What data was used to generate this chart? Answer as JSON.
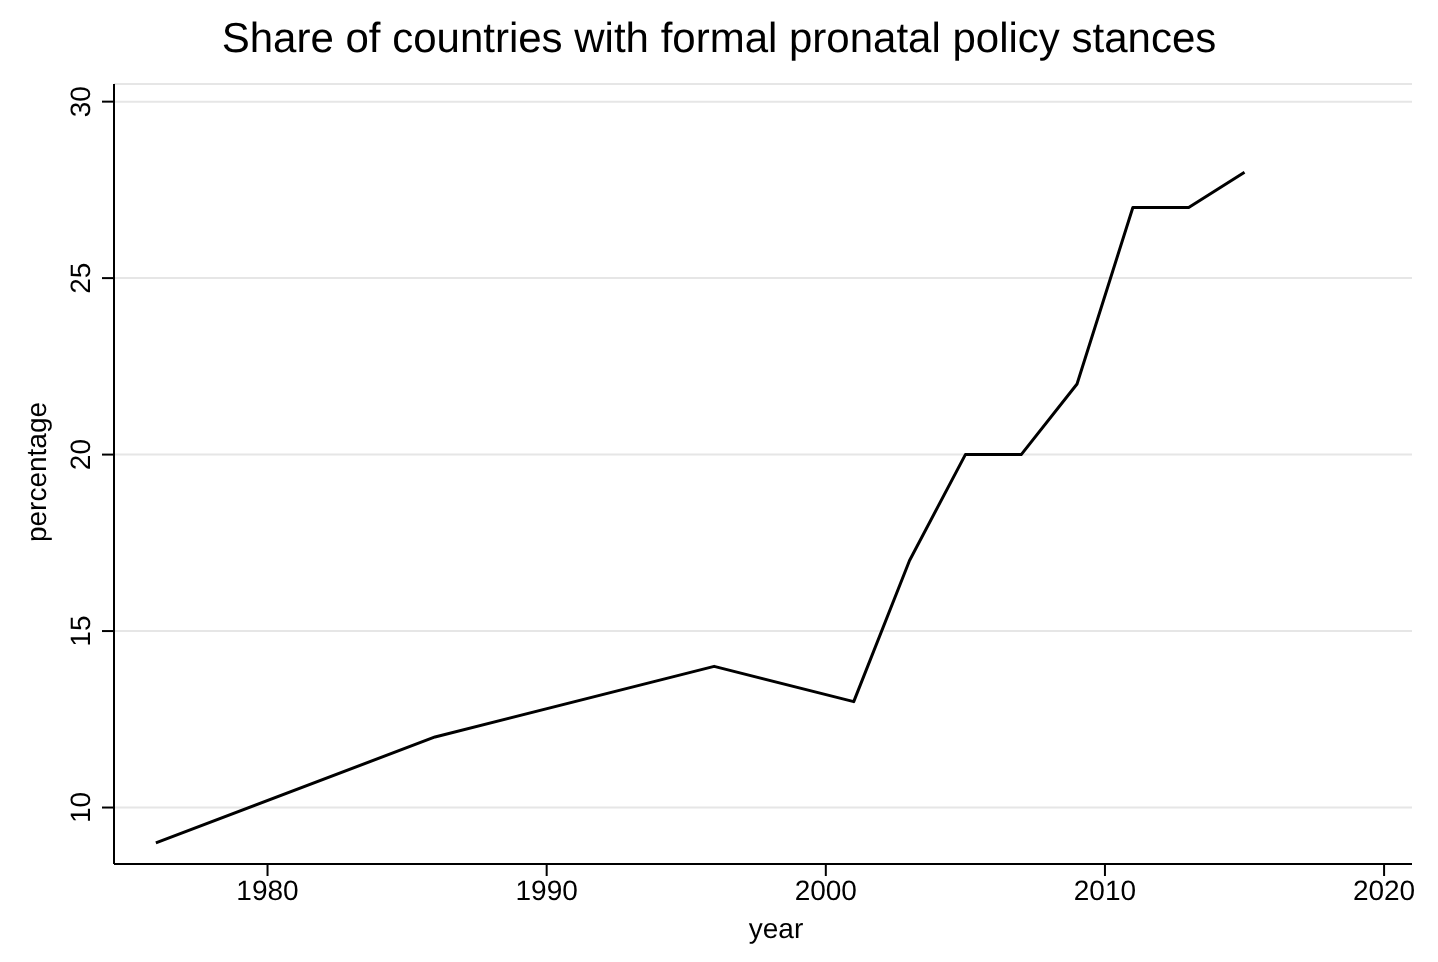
{
  "chart_data": {
    "type": "line",
    "title": "Share of countries with formal pronatal policy stances",
    "xlabel": "year",
    "ylabel": "percentage",
    "x": [
      1976,
      1986,
      1996,
      2001,
      2003,
      2005,
      2007,
      2009,
      2011,
      2013,
      2015
    ],
    "series": [
      {
        "color": "#000000",
        "values": [
          9,
          12,
          14,
          13,
          17,
          20,
          20,
          22,
          27,
          27,
          28
        ]
      }
    ],
    "xlim": [
      1974.5,
      2021
    ],
    "xticks": [
      1980,
      1990,
      2000,
      2010,
      2020
    ],
    "ylim": [
      8.4,
      30.5
    ],
    "yticks": [
      10,
      15,
      20,
      25,
      30
    ],
    "grid": "y",
    "legend": false,
    "marker": "none",
    "line_style": "solid"
  }
}
